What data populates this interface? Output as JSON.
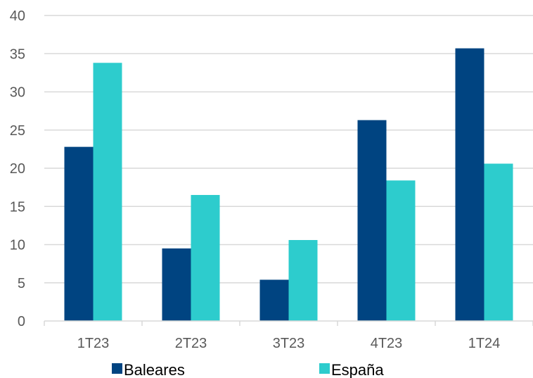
{
  "chart_data": {
    "type": "bar",
    "categories": [
      "1T23",
      "2T23",
      "3T23",
      "4T23",
      "1T24"
    ],
    "series": [
      {
        "name": "Baleares",
        "values": [
          22.8,
          9.5,
          5.4,
          26.3,
          35.7
        ],
        "color": "#004481"
      },
      {
        "name": "España",
        "values": [
          33.8,
          16.5,
          10.6,
          18.4,
          20.6
        ],
        "color": "#2DCCCD"
      }
    ],
    "ylim": [
      0,
      40
    ],
    "yticks": [
      "0",
      "5",
      "10",
      "15",
      "20",
      "25",
      "30",
      "35",
      "40"
    ],
    "grid": true,
    "legend_position": "bottom",
    "colors": {
      "grid": "#D9D9D9",
      "tick_text": "#595959"
    }
  }
}
